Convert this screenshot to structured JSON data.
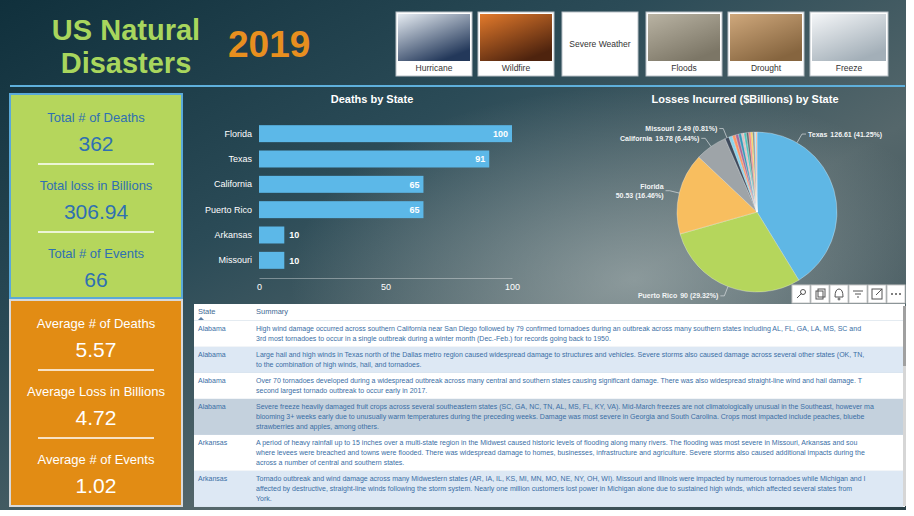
{
  "header": {
    "title": [
      "US Natural",
      "Disasters"
    ],
    "year": "2019"
  },
  "buttons": [
    "Hurricane",
    "Wildfire",
    "Severe Weather",
    "Floods",
    "Drought",
    "Freeze"
  ],
  "kpis": {
    "totals": [
      {
        "label": "Total # of Deaths",
        "value": 362
      },
      {
        "label": "Total loss in Billions",
        "value": 306.94
      },
      {
        "label": "Total # of Events",
        "value": 66
      }
    ],
    "averages": [
      {
        "label": "Average # of Deaths",
        "value": 5.57
      },
      {
        "label": "Average Loss in Billions",
        "value": 4.72
      },
      {
        "label": "Average # of Events",
        "value": 1.02
      }
    ]
  },
  "chart_data": [
    {
      "type": "bar",
      "title": "Deaths by State",
      "orientation": "horizontal",
      "categories": [
        "Florida",
        "Texas",
        "California",
        "Puerto Rico",
        "Arkansas",
        "Missouri"
      ],
      "values": [
        100,
        91,
        65,
        65,
        10,
        10
      ],
      "color": "#5cb8e8",
      "xlim": [
        0,
        100
      ],
      "xticks": [
        0,
        50,
        100
      ],
      "grid": false,
      "data_labels": true
    },
    {
      "type": "pie",
      "title": "Losses Incurred ($Billions) by State",
      "categories": [
        "Texas",
        "Puerto Rico",
        "Florida",
        "California",
        "Missouri",
        null,
        null,
        null,
        null,
        null,
        null,
        null,
        null,
        null,
        null,
        null,
        null
      ],
      "values": [
        126.61,
        90,
        50.53,
        19.78,
        2.49,
        2.2,
        2.0,
        1.9,
        1.8,
        1.6,
        1.5,
        1.4,
        1.3,
        1.2,
        1.1,
        0.9,
        0.63
      ],
      "value_labels": [
        "126.61 (41.25%)",
        "90 (29.32%)",
        "50.53 (16.46%)",
        "19.78 (6.44%)",
        "2.49 (0.81%)",
        null,
        null,
        null,
        null,
        null,
        null,
        null,
        null,
        null,
        null,
        null,
        null
      ],
      "colors": [
        "#5fb7e5",
        "#b5d65c",
        "#f8be5f",
        "#9ea4a8",
        "#3e4a5c",
        "#8ad4eb",
        "#fe9666",
        "#a66999",
        "#3599b8",
        "#dfbfbf",
        "#4ac5bb",
        "#5f6b6d",
        "#fb8281",
        "#f4d25a",
        "#7f898a",
        "#a4ddee",
        "#fdab89"
      ],
      "data_labels": true
    }
  ],
  "table": {
    "columns": [
      "State",
      "Summary"
    ],
    "rows": [
      {
        "state": "Alabama",
        "summary": [
          "High wind damage occurred across southern California near San Diego followed by 79 confirmed tornadoes during an outbreak across many southern states including AL, FL, GA, LA, MS, SC and",
          "3rd most tornadoes to occur in a single outbreak during a winter month (Dec.-Feb.) for records going back to 1950."
        ]
      },
      {
        "state": "Alabama",
        "summary": [
          "Large hail and high winds in Texas north of the Dallas metro region caused widespread damage to structures and vehicles. Severe storms also caused damage across several other states (OK, TN,",
          "to the combination of high winds, hail, and tornadoes."
        ]
      },
      {
        "state": "Alabama",
        "summary": [
          "Over 70 tornadoes developed during a widespread outbreak across many central and southern states causing significant damage. There was also widespread straight-line wind and hail damage. T",
          "second largest tornado outbreak to occur early in 2017."
        ]
      },
      {
        "state": "Alabama",
        "summary": [
          "Severe freeze heavily damaged fruit crops across several southeastern states (SC, GA, NC, TN, AL, MS, FL, KY, VA). Mid-March freezes are not climatologically unusual in the Southeast, however ma",
          "blooming 3+ weeks early due to unusually warm temperatures during the preceding weeks. Damage was most severe in Georgia and South Carolina. Crops most impacted include peaches, bluebe",
          "strawberries and apples, among others."
        ]
      },
      {
        "state": "Arkansas",
        "summary": [
          "A period of heavy rainfall up to 15 inches over a multi-state region in the Midwest caused historic levels of flooding along many rivers. The flooding was most severe in Missouri, Arkansas and sou",
          "where levees were breached and towns were flooded. There was widespread damage to homes, businesses, infrastructure and agriculture. Severe storms also caused additional impacts during the",
          "across a number of central and southern states."
        ]
      },
      {
        "state": "Arkansas",
        "summary": [
          "Tornado outbreak and wind damage across many Midwestern states (AR, IA, IL, KS, MI, MN, MO, NE, NY, OH, WI). Missouri and Illinois were impacted by numerous tornadoes while Michigan and I",
          "affected by destructive, straight-line winds following the storm system. Nearly one million customers lost power in Michigan alone due to sustained high winds, which affected several states from",
          "York."
        ]
      }
    ]
  }
}
